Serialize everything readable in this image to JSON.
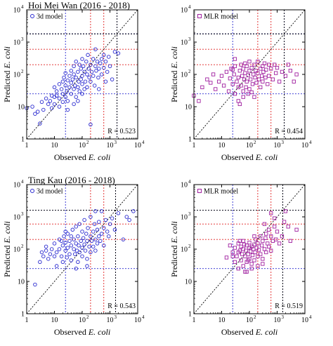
{
  "figure": {
    "ylabel_prefix": "Predicted ",
    "ylabel_italic": "E. coli",
    "xlabel_prefix": "Observed ",
    "xlabel_italic": "E. coli"
  },
  "ticks": {
    "labels": [
      "1",
      "10",
      "10",
      "10",
      "10"
    ],
    "exponents": [
      "",
      "",
      "2",
      "3",
      "4"
    ],
    "values": [
      1,
      10,
      100,
      1000,
      10000
    ]
  },
  "colors": {
    "model_3d": "#2a2ad0",
    "model_mlr": "#a020a0",
    "blue_lines": "#2a2ad0",
    "red_lines": "#e02020",
    "black_lines": "#000000"
  },
  "chart_data": [
    {
      "type": "scatter",
      "panel": "top-left",
      "title": "Hoi Mei Wan (2016 - 2018)",
      "legend": "3d model",
      "marker": "circle",
      "r_label": "R = 0.523",
      "xscale": "log",
      "yscale": "log",
      "xlim": [
        1,
        10000
      ],
      "ylim": [
        1,
        10000
      ],
      "ref_lines": {
        "blue": [
          25,
          1800
        ],
        "red": [
          200,
          600
        ],
        "black": [
          1800
        ]
      },
      "points": [
        [
          1,
          9
        ],
        [
          1.6,
          10
        ],
        [
          2,
          6
        ],
        [
          2.5,
          7
        ],
        [
          3,
          3
        ],
        [
          3.5,
          14
        ],
        [
          4,
          8
        ],
        [
          5,
          18
        ],
        [
          6,
          12
        ],
        [
          7,
          15
        ],
        [
          8,
          9
        ],
        [
          10,
          20
        ],
        [
          10,
          40
        ],
        [
          12,
          22
        ],
        [
          12,
          30
        ],
        [
          15,
          50
        ],
        [
          15,
          18
        ],
        [
          18,
          35
        ],
        [
          20,
          25
        ],
        [
          20,
          60
        ],
        [
          20,
          14
        ],
        [
          22,
          80
        ],
        [
          25,
          20
        ],
        [
          25,
          45
        ],
        [
          25,
          110
        ],
        [
          28,
          30
        ],
        [
          30,
          65
        ],
        [
          30,
          15
        ],
        [
          35,
          40
        ],
        [
          35,
          90
        ],
        [
          40,
          25
        ],
        [
          40,
          130
        ],
        [
          40,
          55
        ],
        [
          45,
          70
        ],
        [
          50,
          35
        ],
        [
          50,
          100
        ],
        [
          50,
          180
        ],
        [
          55,
          45
        ],
        [
          60,
          80
        ],
        [
          60,
          20
        ],
        [
          60,
          250
        ],
        [
          70,
          120
        ],
        [
          70,
          40
        ],
        [
          75,
          60
        ],
        [
          80,
          200
        ],
        [
          80,
          30
        ],
        [
          90,
          150
        ],
        [
          90,
          70
        ],
        [
          100,
          90
        ],
        [
          100,
          300
        ],
        [
          100,
          50
        ],
        [
          100,
          25
        ],
        [
          110,
          180
        ],
        [
          120,
          120
        ],
        [
          120,
          35
        ],
        [
          130,
          60
        ],
        [
          140,
          250
        ],
        [
          150,
          100
        ],
        [
          150,
          40
        ],
        [
          160,
          400
        ],
        [
          170,
          150
        ],
        [
          180,
          80
        ],
        [
          200,
          200
        ],
        [
          200,
          60
        ],
        [
          200,
          2.8
        ],
        [
          220,
          120
        ],
        [
          250,
          300
        ],
        [
          250,
          90
        ],
        [
          280,
          45
        ],
        [
          300,
          180
        ],
        [
          300,
          600
        ],
        [
          320,
          130
        ],
        [
          350,
          250
        ],
        [
          380,
          80
        ],
        [
          400,
          150
        ],
        [
          400,
          35
        ],
        [
          450,
          220
        ],
        [
          500,
          300
        ],
        [
          500,
          100
        ],
        [
          600,
          400
        ],
        [
          600,
          160
        ],
        [
          700,
          250
        ],
        [
          700,
          60
        ],
        [
          800,
          120
        ],
        [
          900,
          350
        ],
        [
          1000,
          180
        ],
        [
          1200,
          70
        ],
        [
          1500,
          500
        ],
        [
          2000,
          450
        ],
        [
          50,
          12
        ],
        [
          30,
          8
        ],
        [
          15,
          10
        ],
        [
          10,
          12
        ],
        [
          8,
          22
        ],
        [
          70,
          15
        ]
      ]
    },
    {
      "type": "scatter",
      "panel": "top-right",
      "legend": "MLR model",
      "marker": "square",
      "r_label": "R = 0.454",
      "xscale": "log",
      "yscale": "log",
      "xlim": [
        1,
        10000
      ],
      "ylim": [
        1,
        10000
      ],
      "ref_lines": {
        "blue": [
          25,
          1800
        ],
        "red": [
          200,
          600
        ],
        "black": [
          1800
        ]
      },
      "points": [
        [
          1,
          22
        ],
        [
          1.5,
          15
        ],
        [
          2,
          40
        ],
        [
          3,
          70
        ],
        [
          4,
          55
        ],
        [
          5,
          100
        ],
        [
          6,
          35
        ],
        [
          8,
          60
        ],
        [
          10,
          90
        ],
        [
          12,
          45
        ],
        [
          15,
          120
        ],
        [
          18,
          30
        ],
        [
          20,
          75
        ],
        [
          22,
          150
        ],
        [
          25,
          50
        ],
        [
          28,
          100
        ],
        [
          30,
          25
        ],
        [
          30,
          180
        ],
        [
          35,
          60
        ],
        [
          40,
          80
        ],
        [
          40,
          15
        ],
        [
          45,
          130
        ],
        [
          50,
          45
        ],
        [
          50,
          200
        ],
        [
          55,
          90
        ],
        [
          60,
          30
        ],
        [
          60,
          150
        ],
        [
          65,
          70
        ],
        [
          70,
          110
        ],
        [
          75,
          40
        ],
        [
          80,
          180
        ],
        [
          80,
          60
        ],
        [
          90,
          95
        ],
        [
          100,
          130
        ],
        [
          100,
          35
        ],
        [
          100,
          250
        ],
        [
          110,
          70
        ],
        [
          120,
          160
        ],
        [
          130,
          50
        ],
        [
          140,
          100
        ],
        [
          150,
          200
        ],
        [
          150,
          20
        ],
        [
          160,
          80
        ],
        [
          170,
          130
        ],
        [
          180,
          55
        ],
        [
          200,
          110
        ],
        [
          200,
          250
        ],
        [
          220,
          70
        ],
        [
          250,
          150
        ],
        [
          250,
          40
        ],
        [
          280,
          90
        ],
        [
          300,
          180
        ],
        [
          300,
          60
        ],
        [
          320,
          120
        ],
        [
          350,
          220
        ],
        [
          380,
          80
        ],
        [
          400,
          140
        ],
        [
          450,
          50
        ],
        [
          500,
          200
        ],
        [
          500,
          90
        ],
        [
          600,
          150
        ],
        [
          700,
          70
        ],
        [
          800,
          200
        ],
        [
          900,
          110
        ],
        [
          1000,
          160
        ],
        [
          1200,
          60
        ],
        [
          1500,
          120
        ],
        [
          2000,
          90
        ],
        [
          2500,
          200
        ],
        [
          3000,
          130
        ],
        [
          4000,
          60
        ],
        [
          5000,
          100
        ],
        [
          30,
          300
        ],
        [
          40,
          40
        ],
        [
          60,
          20
        ],
        [
          90,
          25
        ],
        [
          120,
          28
        ],
        [
          45,
          12
        ],
        [
          70,
          220
        ],
        [
          25,
          140
        ]
      ]
    },
    {
      "type": "scatter",
      "panel": "bottom-left",
      "title": "Ting Kau (2016 - 2018)",
      "legend": "3d model",
      "marker": "circle",
      "r_label": "R = 0.543",
      "xscale": "log",
      "yscale": "log",
      "xlim": [
        1,
        10000
      ],
      "ylim": [
        1,
        10000
      ],
      "ref_lines": {
        "blue": [
          25,
          1600
        ],
        "red": [
          200,
          600
        ],
        "black": [
          1600
        ]
      },
      "points": [
        [
          2,
          8
        ],
        [
          3,
          40
        ],
        [
          3.5,
          80
        ],
        [
          4,
          60
        ],
        [
          5,
          90
        ],
        [
          5,
          120
        ],
        [
          6,
          50
        ],
        [
          7,
          70
        ],
        [
          8,
          100
        ],
        [
          10,
          60
        ],
        [
          10,
          150
        ],
        [
          12,
          80
        ],
        [
          12,
          30
        ],
        [
          15,
          200
        ],
        [
          15,
          100
        ],
        [
          18,
          60
        ],
        [
          20,
          130
        ],
        [
          20,
          40
        ],
        [
          22,
          250
        ],
        [
          25,
          90
        ],
        [
          25,
          160
        ],
        [
          28,
          55
        ],
        [
          30,
          110
        ],
        [
          30,
          300
        ],
        [
          35,
          70
        ],
        [
          35,
          180
        ],
        [
          40,
          130
        ],
        [
          40,
          45
        ],
        [
          45,
          400
        ],
        [
          50,
          100
        ],
        [
          50,
          200
        ],
        [
          55,
          70
        ],
        [
          60,
          150
        ],
        [
          60,
          500
        ],
        [
          65,
          90
        ],
        [
          70,
          250
        ],
        [
          70,
          40
        ],
        [
          75,
          130
        ],
        [
          80,
          600
        ],
        [
          80,
          80
        ],
        [
          90,
          180
        ],
        [
          100,
          110
        ],
        [
          100,
          350
        ],
        [
          100,
          60
        ],
        [
          110,
          220
        ],
        [
          120,
          140
        ],
        [
          120,
          800
        ],
        [
          130,
          90
        ],
        [
          140,
          300
        ],
        [
          150,
          180
        ],
        [
          150,
          50
        ],
        [
          160,
          450
        ],
        [
          180,
          120
        ],
        [
          200,
          250
        ],
        [
          200,
          80
        ],
        [
          200,
          1000
        ],
        [
          220,
          180
        ],
        [
          250,
          350
        ],
        [
          250,
          120
        ],
        [
          280,
          600
        ],
        [
          300,
          200
        ],
        [
          300,
          90
        ],
        [
          350,
          150
        ],
        [
          350,
          400
        ],
        [
          400,
          700
        ],
        [
          400,
          250
        ],
        [
          450,
          180
        ],
        [
          500,
          1500
        ],
        [
          500,
          300
        ],
        [
          600,
          450
        ],
        [
          600,
          130
        ],
        [
          700,
          800
        ],
        [
          800,
          350
        ],
        [
          900,
          250
        ],
        [
          1000,
          600
        ],
        [
          1200,
          900
        ],
        [
          1500,
          400
        ],
        [
          2000,
          1300
        ],
        [
          3000,
          200
        ],
        [
          4000,
          1000
        ],
        [
          7000,
          1500
        ],
        [
          5000,
          800
        ],
        [
          150,
          30
        ],
        [
          40,
          250
        ],
        [
          60,
          25
        ],
        [
          25,
          350
        ],
        [
          18,
          180
        ],
        [
          300,
          1500
        ]
      ]
    },
    {
      "type": "scatter",
      "panel": "bottom-right",
      "legend": "MLR model",
      "marker": "square",
      "r_label": "R = 0.519",
      "xscale": "log",
      "yscale": "log",
      "xlim": [
        1,
        10000
      ],
      "ylim": [
        1,
        10000
      ],
      "ref_lines": {
        "blue": [
          25,
          1600
        ],
        "red": [
          200,
          600
        ],
        "black": [
          1600
        ]
      },
      "points": [
        [
          15,
          55
        ],
        [
          20,
          130
        ],
        [
          25,
          80
        ],
        [
          30,
          40
        ],
        [
          30,
          110
        ],
        [
          35,
          60
        ],
        [
          40,
          150
        ],
        [
          40,
          25
        ],
        [
          45,
          90
        ],
        [
          50,
          45
        ],
        [
          50,
          120
        ],
        [
          55,
          70
        ],
        [
          60,
          100
        ],
        [
          60,
          30
        ],
        [
          65,
          140
        ],
        [
          70,
          60
        ],
        [
          70,
          20
        ],
        [
          75,
          90
        ],
        [
          80,
          130
        ],
        [
          80,
          40
        ],
        [
          90,
          70
        ],
        [
          100,
          110
        ],
        [
          100,
          50
        ],
        [
          100,
          160
        ],
        [
          110,
          85
        ],
        [
          120,
          120
        ],
        [
          120,
          35
        ],
        [
          130,
          65
        ],
        [
          140,
          100
        ],
        [
          150,
          140
        ],
        [
          150,
          45
        ],
        [
          160,
          80
        ],
        [
          170,
          200
        ],
        [
          180,
          110
        ],
        [
          200,
          60
        ],
        [
          200,
          150
        ],
        [
          220,
          95
        ],
        [
          250,
          250
        ],
        [
          250,
          70
        ],
        [
          280,
          130
        ],
        [
          300,
          180
        ],
        [
          300,
          50
        ],
        [
          350,
          100
        ],
        [
          380,
          220
        ],
        [
          400,
          300
        ],
        [
          400,
          80
        ],
        [
          450,
          150
        ],
        [
          500,
          400
        ],
        [
          500,
          120
        ],
        [
          600,
          250
        ],
        [
          600,
          90
        ],
        [
          700,
          180
        ],
        [
          800,
          500
        ],
        [
          900,
          200
        ],
        [
          1000,
          350
        ],
        [
          1200,
          150
        ],
        [
          1500,
          250
        ],
        [
          2000,
          1500
        ],
        [
          3000,
          180
        ],
        [
          5000,
          400
        ],
        [
          2500,
          500
        ],
        [
          1800,
          700
        ],
        [
          800,
          900
        ],
        [
          600,
          1300
        ],
        [
          350,
          600
        ],
        [
          150,
          250
        ],
        [
          60,
          180
        ],
        [
          40,
          80
        ],
        [
          25,
          60
        ],
        [
          80,
          20
        ],
        [
          120,
          25
        ],
        [
          200,
          30
        ],
        [
          300,
          35
        ],
        [
          45,
          180
        ],
        [
          90,
          45
        ]
      ]
    }
  ]
}
